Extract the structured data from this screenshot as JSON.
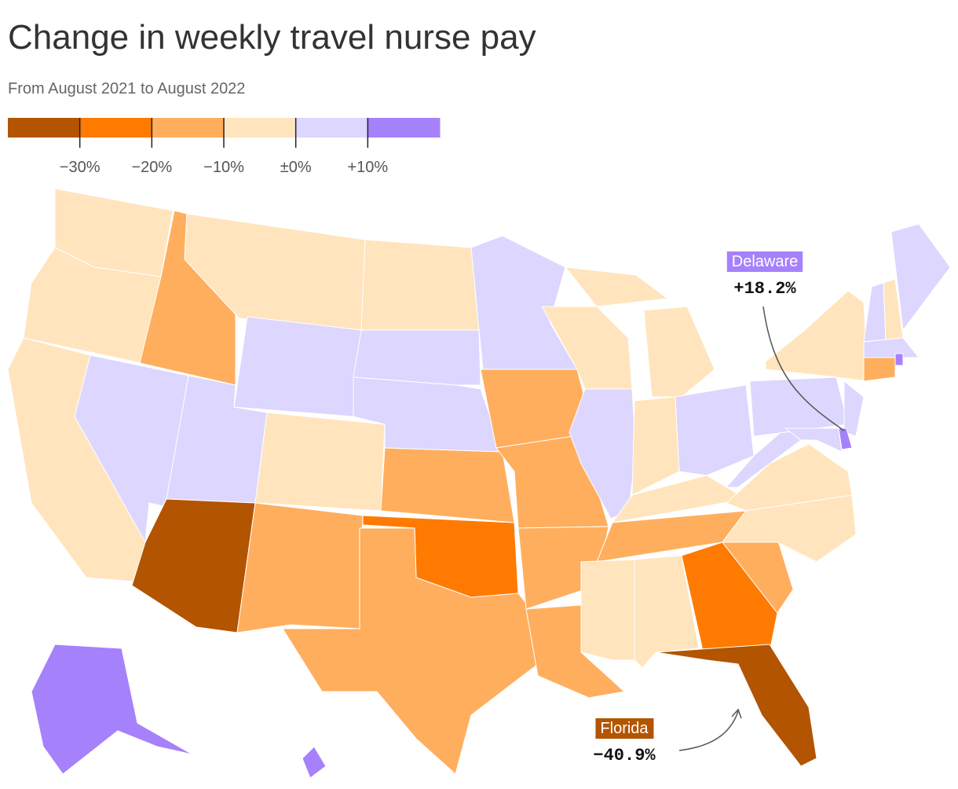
{
  "chart_data": {
    "type": "choropleth",
    "title": "Change in weekly travel nurse pay",
    "subtitle": "From August 2021 to August 2022",
    "legend_colors": [
      "#b35400",
      "#ff7a00",
      "#ffae5e",
      "#ffe4bd",
      "#ddd6fe",
      "#a681fc"
    ],
    "legend_lim": [
      -40,
      20
    ],
    "legend_ticks": [
      {
        "value": -30,
        "label": "−30%"
      },
      {
        "value": -20,
        "label": "−20%"
      },
      {
        "value": -10,
        "label": "−10%"
      },
      {
        "value": 0,
        "label": "±0%"
      },
      {
        "value": 10,
        "label": "+10%"
      }
    ],
    "region_bins": [
      3,
      3,
      3,
      2,
      4,
      3,
      4,
      4,
      0,
      3,
      2,
      3,
      4,
      4,
      2,
      1,
      2,
      4,
      2,
      2,
      2,
      2,
      3,
      4,
      3,
      3,
      3,
      4,
      3,
      2,
      3,
      3,
      1,
      0,
      2,
      3,
      3,
      4,
      4,
      3,
      4,
      5,
      4,
      4,
      3,
      4,
      4,
      2,
      5,
      5,
      5
    ],
    "annotations": [
      {
        "name": "Delaware",
        "value": 18.2,
        "label": "+18.2%"
      },
      {
        "name": "Florida",
        "value": -40.9,
        "label": "−40.9%"
      }
    ]
  }
}
